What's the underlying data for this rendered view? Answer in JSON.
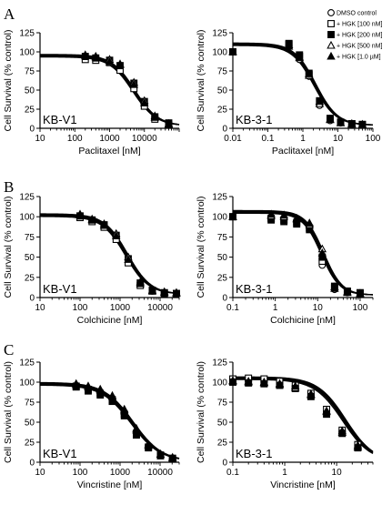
{
  "panel_letters": [
    "A",
    "B",
    "C"
  ],
  "legend": {
    "entries": [
      {
        "label": "DMSO control",
        "marker": "circle-open"
      },
      {
        "label": "+ HGK [100 nM]",
        "marker": "square-open"
      },
      {
        "label": "+ HGK [200 nM]",
        "marker": "square-filled"
      },
      {
        "label": "+ HGK [500 nM]",
        "marker": "triangle-open"
      },
      {
        "label": "+ HGK [1.0 µM]",
        "marker": "triangle-filled"
      }
    ]
  },
  "chart_data": [
    {
      "type": "scatter",
      "cell_line": "KB-V1",
      "panel": "A",
      "xlabel": "Paclitaxel [nM]",
      "ylabel": "Cell Survival (% control)",
      "xscale": "log",
      "xlim": [
        10,
        100000
      ],
      "ylim": [
        0,
        125
      ],
      "xticks": [
        {
          "value": 10,
          "label": "10"
        },
        {
          "value": 100,
          "label": "100"
        },
        {
          "value": 1000,
          "label": "1000"
        },
        {
          "value": 10000,
          "label": "10000"
        }
      ],
      "yticks": [
        0,
        25,
        50,
        75,
        100,
        125
      ],
      "curve": {
        "top": 95,
        "bottom": 3,
        "ec50": 5000,
        "hill": 1.3
      },
      "series": [
        {
          "marker": "circle-open",
          "x": [
            200,
            400,
            1000,
            2000,
            5000,
            10000,
            20000,
            50000
          ],
          "y": [
            93,
            91,
            88,
            80,
            55,
            32,
            13,
            6
          ]
        },
        {
          "marker": "square-open",
          "x": [
            200,
            400,
            1000,
            2000,
            5000,
            10000,
            20000,
            50000
          ],
          "y": [
            90,
            89,
            86,
            76,
            52,
            29,
            12,
            5
          ]
        },
        {
          "marker": "square-filled",
          "x": [
            200,
            400,
            1000,
            2000,
            5000,
            10000,
            20000,
            50000
          ],
          "y": [
            94,
            92,
            89,
            82,
            59,
            35,
            15,
            7
          ]
        },
        {
          "marker": "triangle-open",
          "x": [
            200,
            400,
            1000,
            2000,
            5000,
            10000,
            20000,
            50000
          ],
          "y": [
            96,
            93,
            90,
            84,
            60,
            36,
            16,
            6
          ]
        },
        {
          "marker": "triangle-filled",
          "x": [
            200,
            400,
            1000,
            2000,
            5000,
            10000,
            20000,
            50000
          ],
          "y": [
            95,
            94,
            87,
            83,
            57,
            33,
            14,
            5
          ]
        }
      ]
    },
    {
      "type": "scatter",
      "cell_line": "KB-3-1",
      "panel": "A",
      "xlabel": "Paclitaxel [nM]",
      "ylabel": "Cell Survival (% control)",
      "xscale": "log",
      "xlim": [
        0.01,
        100
      ],
      "ylim": [
        0,
        125
      ],
      "xticks": [
        {
          "value": 0.01,
          "label": "0.01"
        },
        {
          "value": 0.1,
          "label": "0.1"
        },
        {
          "value": 1,
          "label": "1"
        },
        {
          "value": 10,
          "label": "10"
        },
        {
          "value": 100,
          "label": "100"
        }
      ],
      "yticks": [
        0,
        25,
        50,
        75,
        100,
        125
      ],
      "curve": {
        "top": 110,
        "bottom": 4,
        "ec50": 2.2,
        "hill": 1.4
      },
      "series": [
        {
          "marker": "circle-open",
          "x": [
            0.01,
            0.4,
            0.8,
            1.5,
            3,
            6,
            12,
            25,
            50
          ],
          "y": [
            100,
            108,
            90,
            68,
            30,
            10,
            7,
            5,
            5
          ]
        },
        {
          "marker": "square-open",
          "x": [
            0.01,
            0.4,
            0.8,
            1.5,
            3,
            6,
            12,
            25,
            50
          ],
          "y": [
            100,
            110,
            94,
            70,
            34,
            12,
            8,
            6,
            5
          ]
        },
        {
          "marker": "square-filled",
          "x": [
            0.01,
            0.4,
            0.8,
            1.5,
            3,
            6,
            12,
            25,
            50
          ],
          "y": [
            100,
            111,
            96,
            72,
            36,
            13,
            8,
            6,
            5
          ]
        },
        {
          "marker": "triangle-open",
          "x": [
            0.01,
            0.4,
            0.8,
            1.5,
            3,
            6,
            12,
            25,
            50
          ],
          "y": [
            100,
            109,
            92,
            69,
            32,
            11,
            7,
            5,
            4
          ]
        },
        {
          "marker": "triangle-filled",
          "x": [
            0.01,
            0.4,
            0.8,
            1.5,
            3,
            6,
            12,
            25,
            50
          ],
          "y": [
            100,
            107,
            93,
            71,
            35,
            12,
            7,
            6,
            5
          ]
        }
      ]
    },
    {
      "type": "scatter",
      "cell_line": "KB-V1",
      "panel": "B",
      "xlabel": "Colchicine [nM]",
      "ylabel": "Cell Survival (% control)",
      "xscale": "log",
      "xlim": [
        10,
        30000
      ],
      "ylim": [
        0,
        125
      ],
      "xticks": [
        {
          "value": 10,
          "label": "10"
        },
        {
          "value": 100,
          "label": "100"
        },
        {
          "value": 1000,
          "label": "1000"
        },
        {
          "value": 10000,
          "label": "10000"
        }
      ],
      "yticks": [
        0,
        25,
        50,
        75,
        100,
        125
      ],
      "curve": {
        "top": 102,
        "bottom": 4,
        "ec50": 1450,
        "hill": 1.5
      },
      "series": [
        {
          "marker": "circle-open",
          "x": [
            100,
            200,
            400,
            800,
            1600,
            3200,
            6400,
            12800,
            25600
          ],
          "y": [
            100,
            95,
            88,
            75,
            45,
            16,
            8,
            6,
            5
          ]
        },
        {
          "marker": "square-open",
          "x": [
            100,
            200,
            400,
            800,
            1600,
            3200,
            6400,
            12800,
            25600
          ],
          "y": [
            99,
            94,
            87,
            72,
            43,
            15,
            8,
            5,
            5
          ]
        },
        {
          "marker": "square-filled",
          "x": [
            100,
            200,
            400,
            800,
            1600,
            3200,
            6400,
            12800,
            25600
          ],
          "y": [
            101,
            96,
            90,
            77,
            48,
            18,
            9,
            6,
            5
          ]
        },
        {
          "marker": "triangle-open",
          "x": [
            100,
            200,
            400,
            800,
            1600,
            3200,
            6400,
            12800,
            25600
          ],
          "y": [
            102,
            97,
            91,
            79,
            50,
            19,
            9,
            7,
            6
          ]
        },
        {
          "marker": "triangle-filled",
          "x": [
            100,
            200,
            400,
            800,
            1600,
            3200,
            6400,
            12800,
            25600
          ],
          "y": [
            103,
            96,
            89,
            76,
            47,
            17,
            8,
            6,
            5
          ]
        }
      ]
    },
    {
      "type": "scatter",
      "cell_line": "KB-3-1",
      "panel": "B",
      "xlabel": "Colchicine [nM]",
      "ylabel": "Cell Survival (% control)",
      "xscale": "log",
      "xlim": [
        0.1,
        200
      ],
      "ylim": [
        0,
        125
      ],
      "xticks": [
        {
          "value": 0.1,
          "label": "0.1"
        },
        {
          "value": 1,
          "label": "1"
        },
        {
          "value": 10,
          "label": "10"
        },
        {
          "value": 100,
          "label": "100"
        }
      ],
      "yticks": [
        0,
        25,
        50,
        75,
        100,
        125
      ],
      "curve": {
        "top": 106,
        "bottom": 3,
        "ec50": 13,
        "hill": 2.0
      },
      "series": [
        {
          "marker": "circle-open",
          "x": [
            0.1,
            0.8,
            1.6,
            3.2,
            6.4,
            12.8,
            25,
            50,
            100
          ],
          "y": [
            100,
            99,
            98,
            95,
            88,
            40,
            10,
            6,
            5
          ]
        },
        {
          "marker": "square-open",
          "x": [
            0.1,
            0.8,
            1.6,
            3.2,
            6.4,
            12.8,
            25,
            50,
            100
          ],
          "y": [
            100,
            98,
            96,
            93,
            86,
            45,
            12,
            7,
            5
          ]
        },
        {
          "marker": "square-filled",
          "x": [
            0.1,
            0.8,
            1.6,
            3.2,
            6.4,
            12.8,
            25,
            50,
            100
          ],
          "y": [
            100,
            96,
            94,
            91,
            84,
            50,
            14,
            8,
            6
          ]
        },
        {
          "marker": "triangle-open",
          "x": [
            0.1,
            0.8,
            1.6,
            3.2,
            6.4,
            12.8,
            25,
            50,
            100
          ],
          "y": [
            100,
            101,
            100,
            97,
            90,
            60,
            13,
            7,
            5
          ]
        },
        {
          "marker": "triangle-filled",
          "x": [
            0.1,
            0.8,
            1.6,
            3.2,
            6.4,
            12.8,
            25,
            50,
            100
          ],
          "y": [
            100,
            103,
            102,
            98,
            92,
            55,
            11,
            6,
            4
          ]
        }
      ]
    },
    {
      "type": "scatter",
      "cell_line": "KB-V1",
      "panel": "C",
      "xlabel": "Vincristine [nM]",
      "ylabel": "Cell Survival (% control)",
      "xscale": "log",
      "xlim": [
        10,
        30000
      ],
      "ylim": [
        0,
        125
      ],
      "xticks": [
        {
          "value": 10,
          "label": "10"
        },
        {
          "value": 100,
          "label": "100"
        },
        {
          "value": 1000,
          "label": "1000"
        },
        {
          "value": 10000,
          "label": "10000"
        }
      ],
      "yticks": [
        0,
        25,
        50,
        75,
        100,
        125
      ],
      "curve": {
        "top": 98,
        "bottom": 1,
        "ec50": 2000,
        "hill": 1.2
      },
      "series": [
        {
          "marker": "circle-open",
          "x": [
            80,
            160,
            320,
            640,
            1280,
            2560,
            5120,
            10240,
            20480
          ],
          "y": [
            96,
            92,
            88,
            80,
            62,
            38,
            20,
            9,
            5
          ]
        },
        {
          "marker": "square-open",
          "x": [
            80,
            160,
            320,
            640,
            1280,
            2560,
            5120,
            10240,
            20480
          ],
          "y": [
            95,
            91,
            86,
            78,
            60,
            36,
            19,
            9,
            5
          ]
        },
        {
          "marker": "square-filled",
          "x": [
            80,
            160,
            320,
            640,
            1280,
            2560,
            5120,
            10240,
            20480
          ],
          "y": [
            94,
            89,
            84,
            76,
            58,
            34,
            18,
            8,
            4
          ]
        },
        {
          "marker": "triangle-open",
          "x": [
            80,
            160,
            320,
            640,
            1280,
            2560,
            5120,
            10240,
            20480
          ],
          "y": [
            98,
            95,
            91,
            83,
            66,
            42,
            22,
            10,
            6
          ]
        },
        {
          "marker": "triangle-filled",
          "x": [
            80,
            160,
            320,
            640,
            1280,
            2560,
            5120,
            10240,
            20480
          ],
          "y": [
            97,
            94,
            90,
            82,
            64,
            40,
            21,
            10,
            5
          ]
        }
      ]
    },
    {
      "type": "scatter",
      "cell_line": "KB-3-1",
      "panel": "C",
      "xlabel": "Vincristine [nM]",
      "ylabel": "Cell Survival (% control)",
      "xscale": "log",
      "xlim": [
        0.1,
        50
      ],
      "ylim": [
        0,
        125
      ],
      "xticks": [
        {
          "value": 0.1,
          "label": "0.1"
        },
        {
          "value": 1,
          "label": "1"
        },
        {
          "value": 10,
          "label": "10"
        }
      ],
      "yticks": [
        0,
        25,
        50,
        75,
        100,
        125
      ],
      "curve": {
        "top": 105,
        "bottom": 0,
        "ec50": 14,
        "hill": 1.6
      },
      "series": [
        {
          "marker": "circle-open",
          "x": [
            0.1,
            0.2,
            0.4,
            0.8,
            1.6,
            3.2,
            6.4,
            12.8,
            25.6
          ],
          "y": [
            103,
            102,
            101,
            99,
            94,
            83,
            62,
            38,
            20
          ]
        },
        {
          "marker": "square-open",
          "x": [
            0.1,
            0.2,
            0.4,
            0.8,
            1.6,
            3.2,
            6.4,
            12.8,
            25.6
          ],
          "y": [
            104,
            105,
            104,
            101,
            96,
            86,
            66,
            40,
            22
          ]
        },
        {
          "marker": "square-filled",
          "x": [
            0.1,
            0.2,
            0.4,
            0.8,
            1.6,
            3.2,
            6.4,
            12.8,
            25.6
          ],
          "y": [
            100,
            99,
            98,
            96,
            92,
            82,
            60,
            36,
            18
          ]
        },
        {
          "marker": "triangle-open",
          "x": [
            0.1,
            0.2,
            0.4,
            0.8,
            1.6,
            3.2,
            6.4,
            12.8,
            25.6
          ],
          "y": [
            102,
            101,
            100,
            98,
            93,
            84,
            63,
            39,
            21
          ]
        },
        {
          "marker": "triangle-filled",
          "x": [
            0.1,
            0.2,
            0.4,
            0.8,
            1.6,
            3.2,
            6.4,
            12.8,
            25.6
          ],
          "y": [
            101,
            100,
            99,
            97,
            95,
            85,
            64,
            37,
            19
          ]
        }
      ]
    }
  ]
}
